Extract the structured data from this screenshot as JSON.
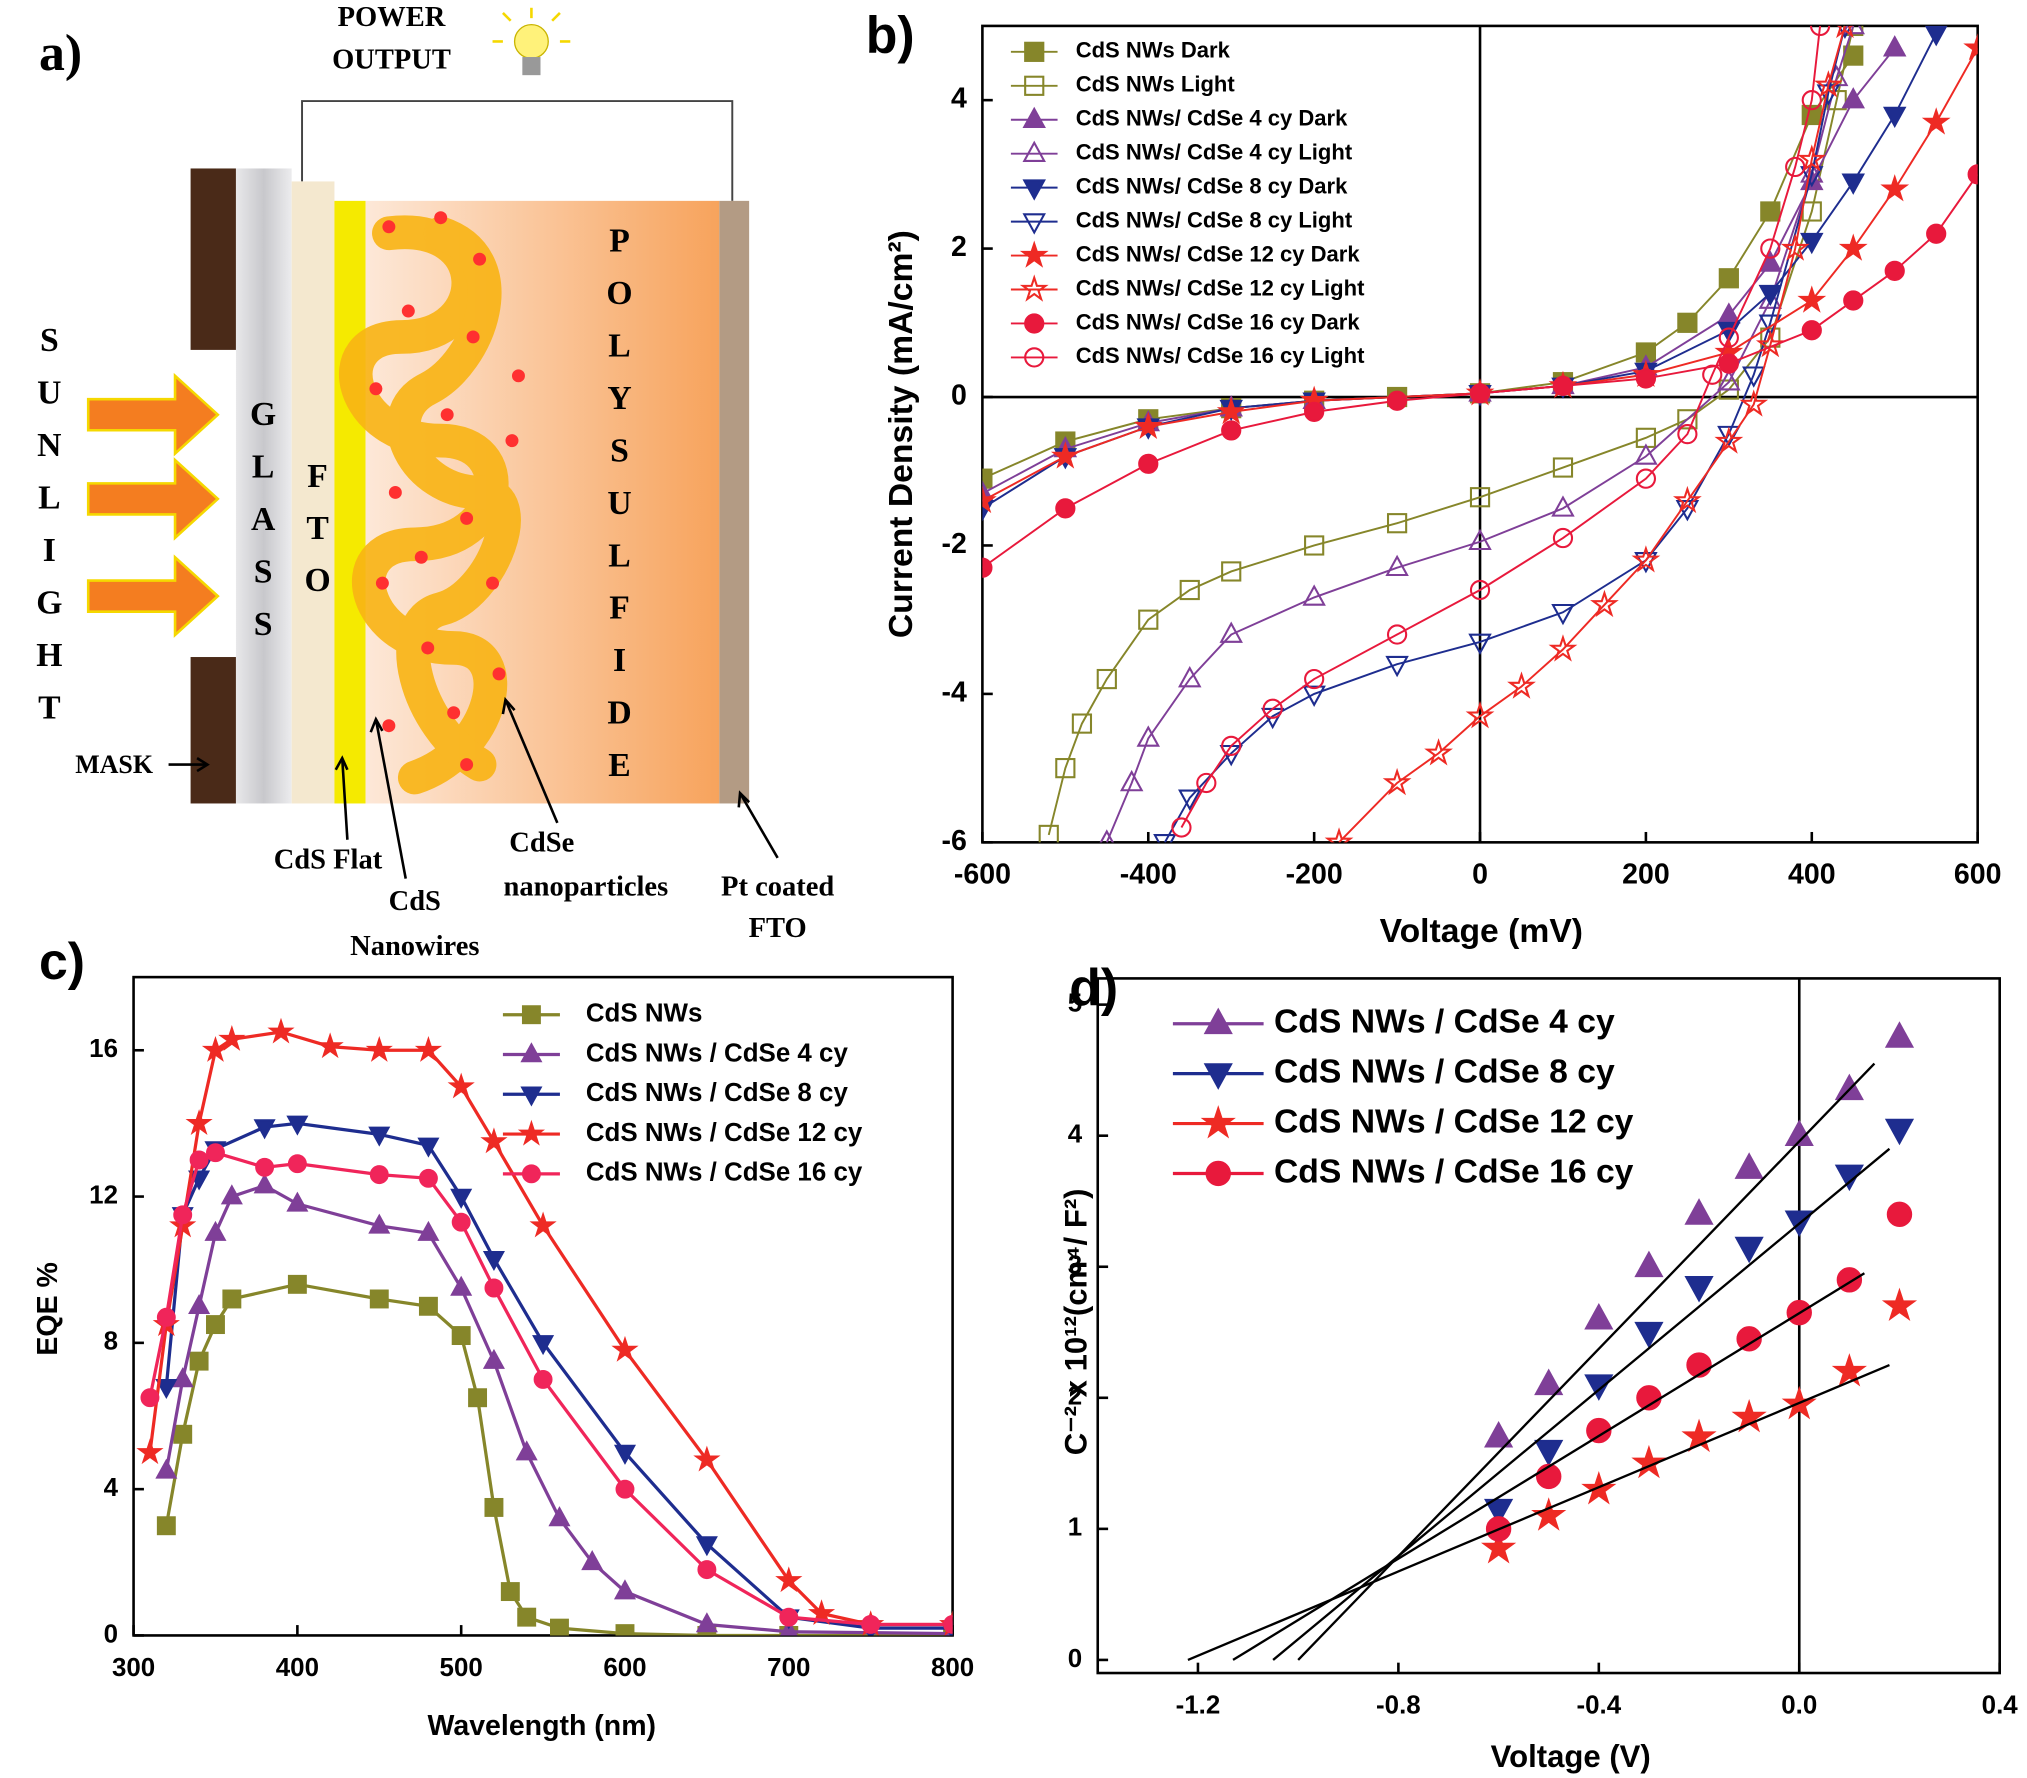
{
  "diagram": {
    "panel_label": "a)",
    "power_output": [
      "POWER",
      "OUTPUT"
    ],
    "sunlight": "SUNLIGHT",
    "glass": "GLASS",
    "fto": "FTO",
    "polysulfide": "POLYSULFIDE",
    "mask": "MASK",
    "cds_flat": "CdS Flat",
    "cds_nanowires": [
      "CdS",
      "Nanowires"
    ],
    "cdse_nanoparticles": [
      "CdSe",
      "nanoparticles"
    ],
    "pt_coated_fto": [
      "Pt coated",
      "FTO"
    ]
  },
  "chart_data": [
    {
      "type": "line",
      "panel_label": "b)",
      "x_label": "Voltage (mV)",
      "y_label": "Current Density (mA/cm²)",
      "xlim": [
        -600,
        600
      ],
      "ylim": [
        -6,
        5
      ],
      "xticks": [
        -600,
        -400,
        -200,
        0,
        200,
        400,
        600
      ],
      "yticks": [
        -6,
        -4,
        -2,
        0,
        2,
        4
      ],
      "reference_lines": {
        "x": 0,
        "y": 0
      },
      "legend": "upper left",
      "series": [
        {
          "name": "CdS NWs Dark",
          "color": "#86862a",
          "marker": "square",
          "filled": true,
          "x": [
            -600,
            -500,
            -400,
            -300,
            -200,
            -100,
            0,
            100,
            200,
            250,
            300,
            350,
            400,
            450
          ],
          "values": [
            -1.1,
            -0.6,
            -0.3,
            -0.15,
            -0.05,
            0,
            0.05,
            0.2,
            0.6,
            1.0,
            1.6,
            2.5,
            3.8,
            4.6
          ]
        },
        {
          "name": "CdS NWs Light",
          "color": "#86862a",
          "marker": "square",
          "filled": false,
          "x": [
            -520,
            -500,
            -480,
            -450,
            -400,
            -350,
            -300,
            -200,
            -100,
            0,
            100,
            200,
            250,
            300,
            350,
            400,
            430,
            450
          ],
          "values": [
            -5.9,
            -5.0,
            -4.4,
            -3.8,
            -3.0,
            -2.6,
            -2.35,
            -2.0,
            -1.7,
            -1.35,
            -0.95,
            -0.55,
            -0.3,
            0.1,
            0.8,
            2.5,
            4.0,
            5.0
          ]
        },
        {
          "name": "CdS NWs/ CdSe 4 cy Dark",
          "color": "#7f3f98",
          "marker": "triangle",
          "filled": true,
          "x": [
            -600,
            -500,
            -400,
            -300,
            -200,
            0,
            100,
            200,
            300,
            350,
            400,
            450,
            500
          ],
          "values": [
            -1.3,
            -0.7,
            -0.35,
            -0.15,
            -0.05,
            0.05,
            0.15,
            0.4,
            1.1,
            1.8,
            2.9,
            4.0,
            4.7
          ]
        },
        {
          "name": "CdS NWs/ CdSe 4 cy Light",
          "color": "#7f3f98",
          "marker": "triangle",
          "filled": false,
          "x": [
            -450,
            -420,
            -400,
            -350,
            -300,
            -200,
            -100,
            0,
            100,
            200,
            300,
            350,
            400,
            430,
            450
          ],
          "values": [
            -6,
            -5.2,
            -4.6,
            -3.8,
            -3.2,
            -2.7,
            -2.3,
            -1.95,
            -1.5,
            -0.8,
            0.2,
            1.3,
            3.0,
            4.3,
            5.0
          ]
        },
        {
          "name": "CdS NWs/ CdSe 8 cy Dark",
          "color": "#1e2d8f",
          "marker": "triangle-down",
          "filled": true,
          "x": [
            -600,
            -500,
            -400,
            -300,
            -200,
            0,
            100,
            200,
            300,
            350,
            400,
            450,
            500,
            550
          ],
          "values": [
            -1.5,
            -0.8,
            -0.4,
            -0.15,
            -0.05,
            0.05,
            0.15,
            0.35,
            0.9,
            1.4,
            2.1,
            2.9,
            3.8,
            4.9
          ]
        },
        {
          "name": "CdS NWs/ CdSe 8 cy Light",
          "color": "#1e2d8f",
          "marker": "triangle-down",
          "filled": false,
          "x": [
            -380,
            -350,
            -300,
            -250,
            -200,
            -100,
            0,
            100,
            200,
            250,
            300,
            330,
            350,
            400,
            420,
            440
          ],
          "values": [
            -6,
            -5.4,
            -4.8,
            -4.3,
            -4.0,
            -3.6,
            -3.3,
            -2.9,
            -2.2,
            -1.5,
            -0.5,
            0.3,
            1.0,
            3.0,
            4.1,
            5.0
          ]
        },
        {
          "name": "CdS NWs/ CdSe 12 cy Dark",
          "color": "#ee2a24",
          "marker": "star",
          "filled": true,
          "x": [
            -600,
            -500,
            -400,
            -300,
            -200,
            0,
            100,
            200,
            300,
            400,
            450,
            500,
            550,
            600
          ],
          "values": [
            -1.4,
            -0.8,
            -0.4,
            -0.2,
            -0.05,
            0.05,
            0.15,
            0.3,
            0.6,
            1.3,
            2.0,
            2.8,
            3.7,
            4.7
          ]
        },
        {
          "name": "CdS NWs/ CdSe 12 cy Light",
          "color": "#ee2a24",
          "marker": "star",
          "filled": false,
          "x": [
            -170,
            -100,
            -50,
            0,
            50,
            100,
            150,
            200,
            250,
            300,
            330,
            350,
            380,
            400,
            420,
            440
          ],
          "values": [
            -6,
            -5.2,
            -4.8,
            -4.3,
            -3.9,
            -3.4,
            -2.8,
            -2.2,
            -1.4,
            -0.6,
            -0.1,
            0.7,
            2.0,
            3.2,
            4.2,
            5.0
          ]
        },
        {
          "name": "CdS NWs/ CdSe 16 cy Dark",
          "color": "#e8193c",
          "marker": "circle",
          "filled": true,
          "x": [
            -600,
            -500,
            -400,
            -300,
            -200,
            -100,
            0,
            100,
            200,
            300,
            400,
            450,
            500,
            550,
            600
          ],
          "values": [
            -2.3,
            -1.5,
            -0.9,
            -0.45,
            -0.2,
            -0.05,
            0.05,
            0.15,
            0.25,
            0.45,
            0.9,
            1.3,
            1.7,
            2.2,
            3.0
          ]
        },
        {
          "name": "CdS NWs/ CdSe 16 cy Light",
          "color": "#e8193c",
          "marker": "circle",
          "filled": false,
          "x": [
            -360,
            -330,
            -300,
            -250,
            -200,
            -100,
            0,
            100,
            200,
            250,
            280,
            300,
            350,
            380,
            400,
            410
          ],
          "values": [
            -5.8,
            -5.2,
            -4.7,
            -4.2,
            -3.8,
            -3.2,
            -2.6,
            -1.9,
            -1.1,
            -0.5,
            0.3,
            0.8,
            2.0,
            3.1,
            4.0,
            5.0
          ]
        }
      ]
    },
    {
      "type": "line",
      "panel_label": "c)",
      "x_label": "Wavelength (nm)",
      "y_label": "EQE %",
      "xlim": [
        300,
        800
      ],
      "ylim": [
        0,
        18
      ],
      "xticks": [
        300,
        400,
        500,
        600,
        700,
        800
      ],
      "yticks": [
        0,
        4,
        8,
        12,
        16
      ],
      "legend": "upper right",
      "series": [
        {
          "name": "CdS NWs",
          "color": "#86862a",
          "marker": "square",
          "filled": true,
          "x": [
            320,
            330,
            340,
            350,
            360,
            400,
            450,
            480,
            500,
            510,
            520,
            530,
            540,
            560,
            600,
            650,
            700,
            800
          ],
          "values": [
            3,
            5.5,
            7.5,
            8.5,
            9.2,
            9.6,
            9.2,
            9.0,
            8.2,
            6.5,
            3.5,
            1.2,
            0.5,
            0.2,
            0.05,
            0,
            0,
            0
          ]
        },
        {
          "name": "CdS NWs / CdSe 4 cy",
          "color": "#7f3f98",
          "marker": "triangle",
          "filled": true,
          "x": [
            320,
            330,
            340,
            350,
            360,
            380,
            400,
            450,
            480,
            500,
            520,
            540,
            560,
            580,
            600,
            650,
            700,
            800
          ],
          "values": [
            4.5,
            7,
            9,
            11,
            12,
            12.3,
            11.8,
            11.2,
            11.0,
            9.5,
            7.5,
            5,
            3.2,
            2.0,
            1.2,
            0.3,
            0.1,
            0.05
          ]
        },
        {
          "name": "CdS NWs / CdSe 8 cy",
          "color": "#1e2d8f",
          "marker": "triangle-down",
          "filled": true,
          "x": [
            320,
            330,
            340,
            350,
            380,
            400,
            450,
            480,
            500,
            520,
            550,
            600,
            650,
            700,
            750,
            800
          ],
          "values": [
            6.8,
            11.5,
            12.5,
            13.3,
            13.9,
            14.0,
            13.7,
            13.4,
            12,
            10.3,
            8,
            5,
            2.5,
            0.5,
            0.2,
            0.2
          ]
        },
        {
          "name": "CdS NWs / CdSe 12 cy",
          "color": "#ee2a24",
          "marker": "star",
          "filled": true,
          "x": [
            310,
            320,
            330,
            340,
            350,
            360,
            390,
            420,
            450,
            480,
            500,
            520,
            550,
            600,
            650,
            700,
            720,
            750,
            800
          ],
          "values": [
            5,
            8.5,
            11.2,
            14,
            16,
            16.3,
            16.5,
            16.1,
            16.0,
            16.0,
            15.0,
            13.5,
            11.2,
            7.8,
            4.8,
            1.5,
            0.6,
            0.3,
            0.3
          ]
        },
        {
          "name": "CdS NWs / CdSe 16 cy",
          "color": "#f0255a",
          "marker": "circle",
          "filled": true,
          "x": [
            310,
            320,
            330,
            340,
            350,
            380,
            400,
            450,
            480,
            500,
            520,
            550,
            600,
            650,
            700,
            750,
            800
          ],
          "values": [
            6.5,
            8.7,
            11.5,
            13.0,
            13.2,
            12.8,
            12.9,
            12.6,
            12.5,
            11.3,
            9.5,
            7.0,
            4.0,
            1.8,
            0.5,
            0.3,
            0.3
          ]
        }
      ]
    },
    {
      "type": "scatter",
      "panel_label": "d)",
      "x_label": "Voltage (V)",
      "y_label": "C⁻² x 10¹²(cm⁴/ F²)",
      "xlim": [
        -1.4,
        0.4
      ],
      "ylim": [
        -0.1,
        5.2
      ],
      "xticks": [
        -1.2,
        -0.8,
        -0.4,
        {
          "value": 0,
          "label": "0.0"
        },
        0.4
      ],
      "yticks": [
        0,
        1,
        2,
        3,
        4,
        5
      ],
      "reference_lines": {
        "x": 0
      },
      "legend": "upper left",
      "series": [
        {
          "name": "CdS NWs / CdSe 4 cy",
          "color": "#7f3f98",
          "marker": "triangle",
          "filled": true,
          "x": [
            -0.6,
            -0.5,
            -0.4,
            -0.3,
            -0.2,
            -0.1,
            0,
            0.1,
            0.2
          ],
          "values": [
            1.7,
            2.1,
            2.6,
            3.0,
            3.4,
            3.75,
            4.0,
            4.35,
            4.75
          ]
        },
        {
          "name": "CdS NWs / CdSe 8 cy",
          "color": "#1e2d8f",
          "marker": "triangle-down",
          "filled": true,
          "x": [
            -0.6,
            -0.5,
            -0.4,
            -0.3,
            -0.2,
            -0.1,
            0,
            0.1,
            0.2
          ],
          "values": [
            1.15,
            1.6,
            2.1,
            2.5,
            2.85,
            3.15,
            3.35,
            3.7,
            4.05
          ]
        },
        {
          "name": "CdS NWs / CdSe 12 cy",
          "color": "#ee2a24",
          "marker": "star",
          "filled": true,
          "x": [
            -0.6,
            -0.5,
            -0.4,
            -0.3,
            -0.2,
            -0.1,
            0,
            0.1,
            0.2
          ],
          "values": [
            0.85,
            1.1,
            1.3,
            1.5,
            1.7,
            1.85,
            1.95,
            2.2,
            2.7
          ]
        },
        {
          "name": "CdS NWs / CdSe 16 cy",
          "color": "#e8193c",
          "marker": "circle",
          "filled": true,
          "x": [
            -0.6,
            -0.5,
            -0.4,
            -0.3,
            -0.2,
            -0.1,
            0,
            0.1,
            0.2
          ],
          "values": [
            1.0,
            1.4,
            1.75,
            2.0,
            2.25,
            2.45,
            2.65,
            2.9,
            3.4
          ]
        }
      ],
      "fit_lines": [
        {
          "x": [
            -1.0,
            0.15
          ],
          "values": [
            0,
            4.55
          ]
        },
        {
          "x": [
            -1.05,
            0.18
          ],
          "values": [
            0,
            3.9
          ]
        },
        {
          "x": [
            -1.13,
            0.13
          ],
          "values": [
            0,
            2.95
          ]
        },
        {
          "x": [
            -1.22,
            0.18
          ],
          "values": [
            0,
            2.25
          ]
        }
      ]
    }
  ]
}
